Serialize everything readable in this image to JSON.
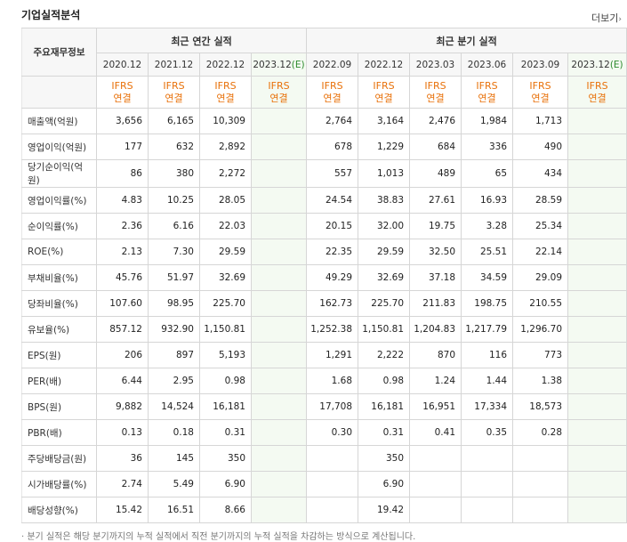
{
  "title": "기업실적분석",
  "more_label": "더보기",
  "headers": {
    "row_header": "주요재무정보",
    "annual": "최근 연간 실적",
    "quarterly": "최근 분기 실적",
    "annual_periods": [
      "2020.12",
      "2021.12",
      "2022.12",
      "2023.12"
    ],
    "quarter_periods": [
      "2022.09",
      "2022.12",
      "2023.03",
      "2023.06",
      "2023.09",
      "2023.12"
    ],
    "estimate_mark": "(E)",
    "ifrs_line1": "IFRS",
    "ifrs_line2": "연결"
  },
  "rows": [
    {
      "label": "매출액(억원)",
      "values": [
        "3,656",
        "6,165",
        "10,309",
        "",
        "2,764",
        "3,164",
        "2,476",
        "1,984",
        "1,713",
        ""
      ]
    },
    {
      "label": "영업이익(억원)",
      "values": [
        "177",
        "632",
        "2,892",
        "",
        "678",
        "1,229",
        "684",
        "336",
        "490",
        ""
      ]
    },
    {
      "label": "당기순이익(억원)",
      "values": [
        "86",
        "380",
        "2,272",
        "",
        "557",
        "1,013",
        "489",
        "65",
        "434",
        ""
      ]
    },
    {
      "label": "영업이익률(%)",
      "values": [
        "4.83",
        "10.25",
        "28.05",
        "",
        "24.54",
        "38.83",
        "27.61",
        "16.93",
        "28.59",
        ""
      ]
    },
    {
      "label": "순이익률(%)",
      "values": [
        "2.36",
        "6.16",
        "22.03",
        "",
        "20.15",
        "32.00",
        "19.75",
        "3.28",
        "25.34",
        ""
      ]
    },
    {
      "label": "ROE(%)",
      "values": [
        "2.13",
        "7.30",
        "29.59",
        "",
        "22.35",
        "29.59",
        "32.50",
        "25.51",
        "22.14",
        ""
      ]
    },
    {
      "label": "부채비율(%)",
      "values": [
        "45.76",
        "51.97",
        "32.69",
        "",
        "49.29",
        "32.69",
        "37.18",
        "34.59",
        "29.09",
        ""
      ]
    },
    {
      "label": "당좌비율(%)",
      "values": [
        "107.60",
        "98.95",
        "225.70",
        "",
        "162.73",
        "225.70",
        "211.83",
        "198.75",
        "210.55",
        ""
      ]
    },
    {
      "label": "유보율(%)",
      "values": [
        "857.12",
        "932.90",
        "1,150.81",
        "",
        "1,252.38",
        "1,150.81",
        "1,204.83",
        "1,217.79",
        "1,296.70",
        ""
      ]
    },
    {
      "label": "EPS(원)",
      "values": [
        "206",
        "897",
        "5,193",
        "",
        "1,291",
        "2,222",
        "870",
        "116",
        "773",
        ""
      ]
    },
    {
      "label": "PER(배)",
      "values": [
        "6.44",
        "2.95",
        "0.98",
        "",
        "1.68",
        "0.98",
        "1.24",
        "1.44",
        "1.38",
        ""
      ]
    },
    {
      "label": "BPS(원)",
      "values": [
        "9,882",
        "14,524",
        "16,181",
        "",
        "17,708",
        "16,181",
        "16,951",
        "17,334",
        "18,573",
        ""
      ]
    },
    {
      "label": "PBR(배)",
      "values": [
        "0.13",
        "0.18",
        "0.31",
        "",
        "0.30",
        "0.31",
        "0.41",
        "0.35",
        "0.28",
        ""
      ]
    },
    {
      "label": "주당배당금(원)",
      "values": [
        "36",
        "145",
        "350",
        "",
        "",
        "350",
        "",
        "",
        "",
        ""
      ]
    },
    {
      "label": "시가배당률(%)",
      "values": [
        "2.74",
        "5.49",
        "6.90",
        "",
        "",
        "6.90",
        "",
        "",
        "",
        ""
      ]
    },
    {
      "label": "배당성향(%)",
      "values": [
        "15.42",
        "16.51",
        "8.66",
        "",
        "",
        "19.42",
        "",
        "",
        "",
        ""
      ]
    }
  ],
  "group_starts": [
    3,
    6,
    9,
    13
  ],
  "footnote": "· 분기 실적은 해당 분기까지의 누적 실적에서 직전 분기까지의 누적 실적을 차감하는 방식으로 계산됩니다."
}
